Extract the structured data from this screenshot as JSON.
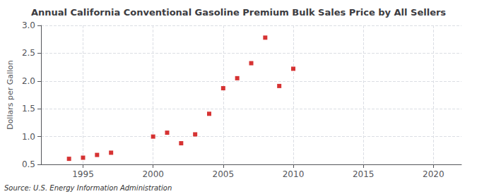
{
  "chart_data": {
    "type": "scatter",
    "title": "Annual California Conventional Gasoline Premium Bulk Sales Price by All Sellers",
    "ylabel": "Dollars per Gallon",
    "annotation": "Source: U.S. Energy Information Administration",
    "x": [
      1994,
      1995,
      1996,
      1997,
      2000,
      2001,
      2002,
      2003,
      2004,
      2005,
      2006,
      2007,
      2008,
      2009,
      2010
    ],
    "values": [
      0.6,
      0.62,
      0.67,
      0.71,
      1.0,
      1.07,
      0.88,
      1.04,
      1.41,
      1.87,
      2.05,
      2.32,
      2.78,
      1.91,
      2.22
    ],
    "color": "#cc0000",
    "marker": "square",
    "xlim": [
      1992,
      2022
    ],
    "xticks": [
      1995,
      2000,
      2005,
      2010,
      2015,
      2020
    ],
    "ylim": [
      0.5,
      3.0
    ],
    "yticks": [
      0.5,
      {
        "value": 1.0,
        "label": "1.0"
      },
      1.5,
      {
        "value": 2.0,
        "label": "2.0"
      },
      2.5,
      {
        "value": 3.0,
        "label": "3.0"
      }
    ],
    "grid": true
  }
}
